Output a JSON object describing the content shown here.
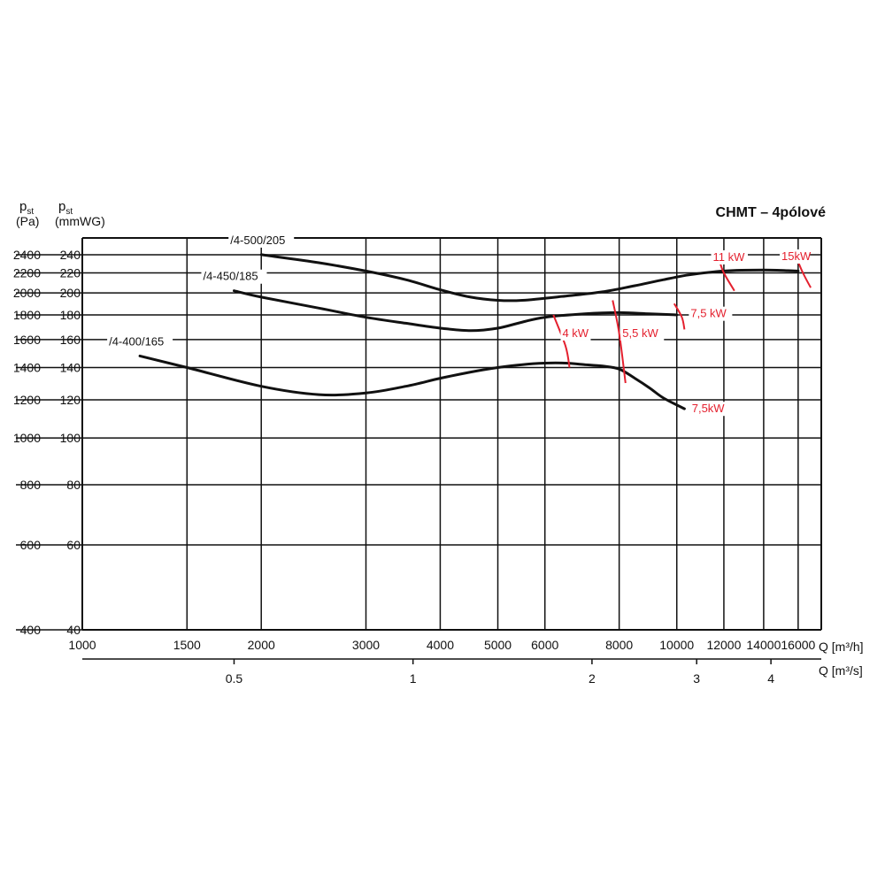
{
  "chart_data": {
    "type": "line",
    "title": "CHMT – 4pólové",
    "y_left_label": {
      "main": "p",
      "sub": "st",
      "unit": "(Pa)"
    },
    "y_right_label": {
      "main": "p",
      "sub": "st",
      "unit": "(mmWG)"
    },
    "x_unit_top": "Q [m³/h]",
    "x_unit_bottom": "Q [m³/s]",
    "x_scale": "log",
    "y_scale": "log",
    "xlim": [
      1000,
      17500
    ],
    "ylim_mmwg": [
      40,
      260
    ],
    "grid": true,
    "x_ticks_top": [
      1000,
      1500,
      2000,
      3000,
      4000,
      5000,
      6000,
      8000,
      10000,
      12000,
      14000,
      16000
    ],
    "x_ticks_bottom": [
      0.5,
      1,
      2,
      3,
      4
    ],
    "y_ticks_pa": [
      400,
      600,
      800,
      1000,
      1200,
      1400,
      1600,
      1800,
      2000,
      2200,
      2400
    ],
    "y_ticks_mmwg": [
      40,
      60,
      80,
      100,
      120,
      140,
      160,
      180,
      200,
      220,
      240
    ],
    "series": [
      {
        "name": "/4-500/205",
        "points": [
          [
            2000,
            240
          ],
          [
            2500,
            231
          ],
          [
            3000,
            222
          ],
          [
            3500,
            213
          ],
          [
            4000,
            203
          ],
          [
            4500,
            196
          ],
          [
            5000,
            193
          ],
          [
            5500,
            193
          ],
          [
            6500,
            197
          ],
          [
            7500,
            201
          ],
          [
            8500,
            207
          ],
          [
            9500,
            213
          ],
          [
            10500,
            218
          ],
          [
            12000,
            222
          ],
          [
            14000,
            223
          ],
          [
            16000,
            222
          ]
        ]
      },
      {
        "name": "/4-450/185",
        "points": [
          [
            1800,
            202
          ],
          [
            2000,
            196
          ],
          [
            2500,
            186
          ],
          [
            3000,
            178
          ],
          [
            3500,
            173
          ],
          [
            4000,
            169
          ],
          [
            4500,
            167
          ],
          [
            5000,
            169
          ],
          [
            5500,
            174
          ],
          [
            6000,
            178
          ],
          [
            7000,
            181
          ],
          [
            8000,
            182
          ],
          [
            9000,
            181
          ],
          [
            10000,
            180
          ]
        ]
      },
      {
        "name": "/4-400/165",
        "points": [
          [
            1250,
            148
          ],
          [
            1500,
            140
          ],
          [
            2000,
            128
          ],
          [
            2500,
            123
          ],
          [
            3000,
            124
          ],
          [
            3500,
            128
          ],
          [
            4000,
            133
          ],
          [
            4500,
            137
          ],
          [
            5000,
            140
          ],
          [
            5500,
            142
          ],
          [
            6000,
            143
          ],
          [
            6500,
            143
          ],
          [
            7000,
            142
          ],
          [
            7500,
            141
          ],
          [
            8000,
            139
          ],
          [
            8500,
            133
          ],
          [
            9000,
            127
          ],
          [
            9500,
            121
          ],
          [
            10300,
            115
          ]
        ]
      }
    ],
    "power_marks": [
      {
        "label": "4 kW",
        "points": [
          [
            6200,
            180
          ],
          [
            6500,
            155
          ],
          [
            6600,
            140
          ]
        ]
      },
      {
        "label": "5,5 kW",
        "points": [
          [
            7800,
            193
          ],
          [
            8000,
            165
          ],
          [
            8200,
            130
          ]
        ]
      },
      {
        "label": "7,5 kW",
        "points": [
          [
            9900,
            190
          ],
          [
            10200,
            178
          ],
          [
            10300,
            168
          ]
        ]
      },
      {
        "label": "7,5kW",
        "points": []
      },
      {
        "label": "11 kW",
        "points": [
          [
            11800,
            233
          ],
          [
            12000,
            220
          ],
          [
            12500,
            202
          ]
        ]
      },
      {
        "label": "15kW",
        "points": [
          [
            16000,
            232
          ],
          [
            16300,
            220
          ],
          [
            16800,
            205
          ]
        ]
      }
    ]
  }
}
